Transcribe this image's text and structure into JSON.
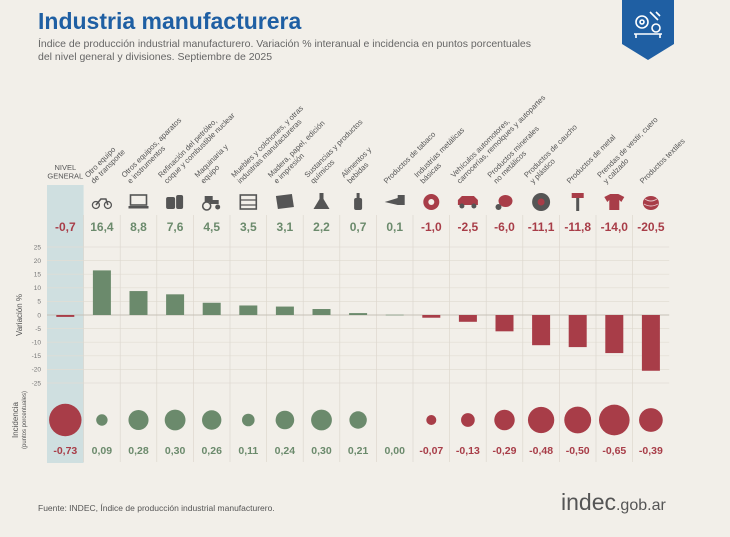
{
  "header": {
    "title": "Industria manufacturera",
    "subtitle_line1": "Índice de producción industrial manufacturero. Variación % interanual e incidencia en puntos porcentuales",
    "subtitle_line2": "del nivel general y divisiones. Septiembre de 2025"
  },
  "colors": {
    "positive": "#6b8a6c",
    "negative": "#a83d48",
    "highlight": "#cfdfe0",
    "brand_blue": "#1f5fa3"
  },
  "footer": {
    "source": "Fuente: INDEC, Índice de producción industrial manufacturero.",
    "brand_main": "indec",
    "brand_domain": ".gob.ar"
  },
  "chart_data": {
    "type": "bar",
    "title": "Industria manufacturera",
    "ylabel": "Variación %",
    "ylim": [
      -25,
      25
    ],
    "yticks": [
      25,
      20,
      15,
      10,
      5,
      0,
      -5,
      -10,
      -15,
      -20,
      -25
    ],
    "incidence_label": "Incidencia",
    "incidence_unit": "(puntos porcentuales)",
    "categories": [
      {
        "lines": [
          "NIVEL",
          "GENERAL"
        ],
        "icon": "",
        "value": -0.7,
        "value_label": "-0,7",
        "incidence": -0.73,
        "incidence_label": "-0,73",
        "highlight": true
      },
      {
        "lines": [
          "Otro equipo",
          "de transporte"
        ],
        "icon": "motorcycle-icon",
        "value": 16.4,
        "value_label": "16,4",
        "incidence": 0.09,
        "incidence_label": "0,09"
      },
      {
        "lines": [
          "Otros equipos, aparatos",
          "e instrumentos"
        ],
        "icon": "computer-icon",
        "value": 8.8,
        "value_label": "8,8",
        "incidence": 0.28,
        "incidence_label": "0,28"
      },
      {
        "lines": [
          "Refinación del petróleo,",
          "coque y combustible nuclear"
        ],
        "icon": "fuel-tank-icon",
        "value": 7.6,
        "value_label": "7,6",
        "incidence": 0.3,
        "incidence_label": "0,30"
      },
      {
        "lines": [
          "Maquinaria y",
          "equipo"
        ],
        "icon": "tractor-icon",
        "value": 4.5,
        "value_label": "4,5",
        "incidence": 0.26,
        "incidence_label": "0,26"
      },
      {
        "lines": [
          "Muebles y colchones, y otras",
          "industrias manufactureras"
        ],
        "icon": "dresser-icon",
        "value": 3.5,
        "value_label": "3,5",
        "incidence": 0.11,
        "incidence_label": "0,11"
      },
      {
        "lines": [
          "Madera, papel, edición",
          "e impresión"
        ],
        "icon": "paper-icon",
        "value": 3.1,
        "value_label": "3,1",
        "incidence": 0.24,
        "incidence_label": "0,24"
      },
      {
        "lines": [
          "Sustancias y productos",
          "químicos"
        ],
        "icon": "flask-icon",
        "value": 2.2,
        "value_label": "2,2",
        "incidence": 0.3,
        "incidence_label": "0,30"
      },
      {
        "lines": [
          "Alimentos y",
          "bebidas"
        ],
        "icon": "bottle-icon",
        "value": 0.7,
        "value_label": "0,7",
        "incidence": 0.21,
        "incidence_label": "0,21"
      },
      {
        "lines": [
          "Productos de tabaco"
        ],
        "icon": "pipe-icon",
        "value": 0.1,
        "value_label": "0,1",
        "incidence": 0.0,
        "incidence_label": "0,00"
      },
      {
        "lines": [
          "Industrias metálicas",
          "básicas"
        ],
        "icon": "coil-icon",
        "value": -1.0,
        "value_label": "-1,0",
        "incidence": -0.07,
        "incidence_label": "-0,07"
      },
      {
        "lines": [
          "Vehículos automotores,",
          "carrocerías, remolques y autopartes"
        ],
        "icon": "car-icon",
        "value": -2.5,
        "value_label": "-2,5",
        "incidence": -0.13,
        "incidence_label": "-0,13"
      },
      {
        "lines": [
          "Productos minerales",
          "no metálicos"
        ],
        "icon": "cement-mixer-icon",
        "value": -6.0,
        "value_label": "-6,0",
        "incidence": -0.29,
        "incidence_label": "-0,29"
      },
      {
        "lines": [
          "Productos de caucho",
          "y plástico"
        ],
        "icon": "tire-icon",
        "value": -11.1,
        "value_label": "-11,1",
        "incidence": -0.48,
        "incidence_label": "-0,48"
      },
      {
        "lines": [
          "Productos de metal"
        ],
        "icon": "hammer-icon",
        "value": -11.8,
        "value_label": "-11,8",
        "incidence": -0.5,
        "incidence_label": "-0,50"
      },
      {
        "lines": [
          "Prendas de vestir, cuero",
          "y calzado"
        ],
        "icon": "shirt-icon",
        "value": -14.0,
        "value_label": "-14,0",
        "incidence": -0.65,
        "incidence_label": "-0,65"
      },
      {
        "lines": [
          "Productos textiles"
        ],
        "icon": "yarn-icon",
        "value": -20.5,
        "value_label": "-20,5",
        "incidence": -0.39,
        "incidence_label": "-0,39"
      }
    ]
  }
}
